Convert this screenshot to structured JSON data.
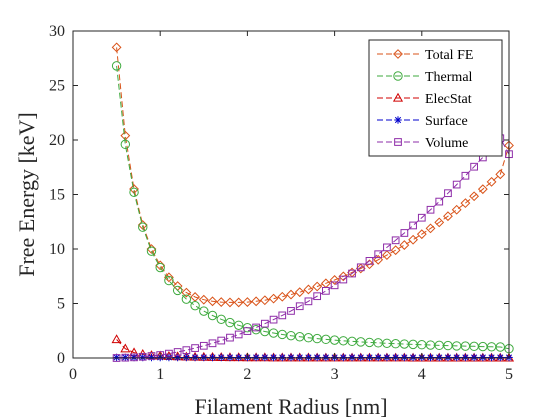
{
  "chart_data": {
    "type": "line",
    "xlabel": "Filament Radius [nm]",
    "ylabel": "Free Energy [keV]",
    "xlim": [
      0,
      5
    ],
    "ylim": [
      0,
      30
    ],
    "x_ticks": [
      "0",
      "1",
      "2",
      "3",
      "4",
      "5"
    ],
    "y_ticks": [
      "0",
      "5",
      "10",
      "15",
      "20",
      "25",
      "30"
    ],
    "grid": false,
    "legend_position": "top-right",
    "x": [
      0.5,
      0.6,
      0.7,
      0.8,
      0.9,
      1.0,
      1.1,
      1.2,
      1.3,
      1.4,
      1.5,
      1.6,
      1.7,
      1.8,
      1.9,
      2.0,
      2.1,
      2.2,
      2.3,
      2.4,
      2.5,
      2.6,
      2.7,
      2.8,
      2.9,
      3.0,
      3.1,
      3.2,
      3.3,
      3.4,
      3.5,
      3.6,
      3.7,
      3.8,
      3.9,
      4.0,
      4.1,
      4.2,
      4.3,
      4.4,
      4.5,
      4.6,
      4.7,
      4.8,
      4.9,
      5.0
    ],
    "series": [
      {
        "name": "Total FE",
        "color": "#D95319",
        "marker": "diamond",
        "values": [
          28.5,
          20.4,
          15.5,
          12.2,
          10.0,
          8.5,
          7.4,
          6.6,
          6.0,
          5.6,
          5.35,
          5.2,
          5.13,
          5.1,
          5.1,
          5.13,
          5.2,
          5.3,
          5.45,
          5.62,
          5.82,
          6.04,
          6.29,
          6.56,
          6.85,
          7.16,
          7.49,
          7.84,
          8.21,
          8.6,
          9.01,
          9.44,
          9.89,
          10.36,
          10.85,
          11.36,
          11.89,
          12.44,
          13.01,
          13.6,
          14.21,
          14.84,
          15.49,
          16.16,
          16.85,
          19.5
        ]
      },
      {
        "name": "Thermal",
        "color": "#3EAA3E",
        "marker": "circle",
        "values": [
          26.8,
          19.6,
          15.2,
          12.0,
          9.8,
          8.3,
          7.1,
          6.2,
          5.4,
          4.8,
          4.3,
          3.9,
          3.55,
          3.25,
          3.0,
          2.78,
          2.6,
          2.43,
          2.29,
          2.16,
          2.05,
          1.95,
          1.86,
          1.78,
          1.71,
          1.64,
          1.58,
          1.53,
          1.48,
          1.43,
          1.39,
          1.35,
          1.31,
          1.28,
          1.25,
          1.22,
          1.19,
          1.16,
          1.14,
          1.11,
          1.09,
          1.07,
          1.05,
          1.03,
          1.01,
          0.85
        ]
      },
      {
        "name": "ElecStat",
        "color": "#D00000",
        "marker": "triangle",
        "values": [
          1.7,
          0.85,
          0.5,
          0.35,
          0.25,
          0.2,
          0.16,
          0.13,
          0.11,
          0.09,
          0.08,
          0.07,
          0.06,
          0.05,
          0.05,
          0.04,
          0.04,
          0.04,
          0.03,
          0.03,
          0.03,
          0.03,
          0.03,
          0.02,
          0.02,
          0.02,
          0.02,
          0.02,
          0.02,
          0.02,
          0.02,
          0.02,
          0.02,
          0.02,
          0.01,
          0.01,
          0.01,
          0.01,
          0.01,
          0.01,
          0.01,
          0.01,
          0.01,
          0.01,
          0.01,
          0.01
        ]
      },
      {
        "name": "Surface",
        "color": "#0000CC",
        "marker": "asterisk",
        "values": [
          0.05,
          0.05,
          0.05,
          0.05,
          0.05,
          0.05,
          0.05,
          0.05,
          0.05,
          0.05,
          0.05,
          0.05,
          0.05,
          0.05,
          0.05,
          0.05,
          0.05,
          0.05,
          0.05,
          0.05,
          0.05,
          0.05,
          0.05,
          0.05,
          0.05,
          0.05,
          0.05,
          0.05,
          0.05,
          0.05,
          0.05,
          0.05,
          0.05,
          0.05,
          0.05,
          0.05,
          0.05,
          0.05,
          0.05,
          0.05,
          0.05,
          0.05,
          0.05,
          0.05,
          0.05,
          0.05
        ]
      },
      {
        "name": "Volume",
        "color": "#8E2CA8",
        "marker": "square",
        "values": [
          0.0,
          0.03,
          0.06,
          0.11,
          0.18,
          0.27,
          0.4,
          0.55,
          0.72,
          0.91,
          1.12,
          1.35,
          1.6,
          1.87,
          2.16,
          2.47,
          2.8,
          3.15,
          3.52,
          3.91,
          4.32,
          4.75,
          5.2,
          5.67,
          6.16,
          6.67,
          7.2,
          7.75,
          8.32,
          8.91,
          9.52,
          10.15,
          10.8,
          11.47,
          12.16,
          12.87,
          13.6,
          14.35,
          15.12,
          15.91,
          16.72,
          17.55,
          18.4,
          19.27,
          20.16,
          18.7
        ]
      }
    ]
  }
}
